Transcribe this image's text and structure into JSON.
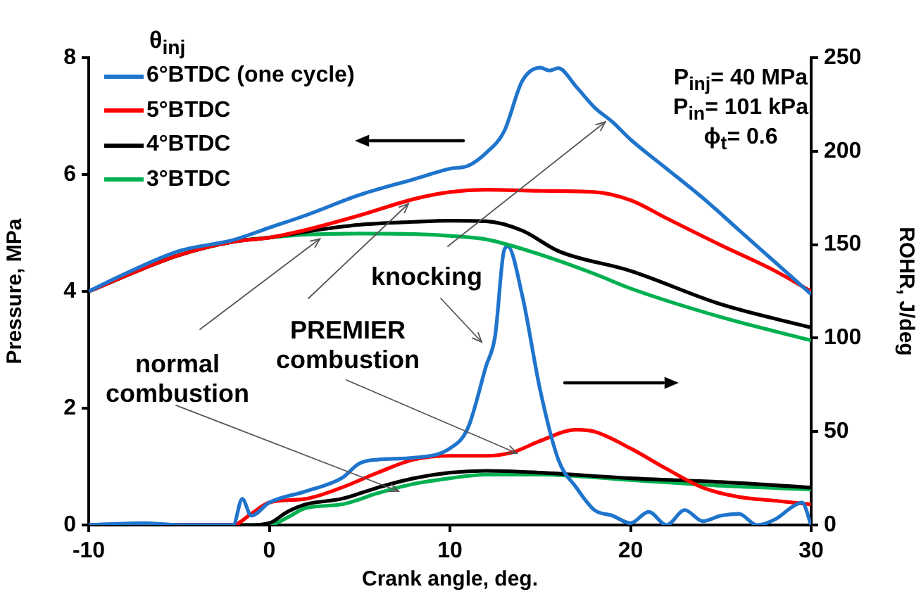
{
  "chart_data": {
    "type": "line",
    "xlabel": "Crank angle, deg.",
    "ylabel": "Pressure, MPa",
    "y2label": "ROHR, J/deg",
    "legend_title": "θ$_{inj}$",
    "legend": "top left",
    "grid": false,
    "marker": "none",
    "line_style": "solid",
    "xlim": [
      -10,
      30
    ],
    "xticks": [
      -10,
      0,
      10,
      20,
      30
    ],
    "ylim": [
      0,
      8
    ],
    "yticks": [
      0,
      2,
      4,
      6,
      8
    ],
    "y2lim": [
      0,
      250
    ],
    "y2ticks": [
      0,
      50,
      100,
      150,
      200,
      250
    ],
    "annotations": [
      {
        "text": "knocking",
        "x": 18.6,
        "y": 6.9
      },
      {
        "text": "PREMIER combustion",
        "x": 7.7,
        "y": 5.5
      },
      {
        "text": "normal combustion",
        "x": 2.8,
        "y": 4.9
      },
      "P$_{inj}$= 40 MPa",
      "P$_{in}$= 101 kPa",
      "ϕ$_{t}$= 0.6"
    ],
    "series": [
      {
        "name": "6°BTDC (one cycle)",
        "color": "#1f74cc",
        "x": [
          -10,
          -8,
          -5,
          -2,
          0,
          2,
          5,
          8,
          10,
          11,
          12,
          13,
          14,
          15,
          15.5,
          16,
          17,
          18,
          19,
          20,
          22,
          24,
          26,
          28,
          30
        ],
        "values": [
          4.0,
          4.3,
          4.69,
          4.88,
          5.09,
          5.3,
          5.65,
          5.92,
          6.1,
          6.15,
          6.37,
          6.74,
          7.6,
          7.83,
          7.78,
          7.82,
          7.5,
          7.15,
          6.9,
          6.6,
          6.1,
          5.6,
          5.05,
          4.5,
          3.95
        ]
      },
      {
        "name": "5°BTDC",
        "color": "#ff0000",
        "x": [
          -10,
          -5,
          -2,
          0,
          2,
          5,
          8,
          10,
          12,
          15,
          18,
          20,
          22,
          25,
          28,
          30
        ],
        "values": [
          4.0,
          4.62,
          4.85,
          4.92,
          5.05,
          5.3,
          5.58,
          5.7,
          5.74,
          5.72,
          5.7,
          5.56,
          5.25,
          4.79,
          4.35,
          4.0
        ]
      },
      {
        "name": "4°BTDC",
        "color": "#000000",
        "x": [
          -10,
          -5,
          -2,
          0,
          2,
          5,
          8,
          10,
          12,
          14,
          16,
          20,
          25,
          30
        ],
        "values": [
          4.0,
          4.62,
          4.85,
          4.92,
          5.02,
          5.14,
          5.19,
          5.21,
          5.2,
          5.04,
          4.69,
          4.35,
          3.78,
          3.38
        ]
      },
      {
        "name": "3°BTDC",
        "color": "#00b050",
        "x": [
          -10,
          -5,
          -2,
          0,
          2,
          5,
          8,
          10,
          12,
          15,
          18,
          20,
          25,
          30
        ],
        "values": [
          4.0,
          4.62,
          4.85,
          4.92,
          4.97,
          4.99,
          4.98,
          4.95,
          4.89,
          4.63,
          4.3,
          4.05,
          3.56,
          3.16
        ]
      },
      {
        "axis": "y2",
        "color": "#1f74cc",
        "x": [
          -10,
          -7,
          -5,
          -2,
          -1.5,
          -1,
          0,
          2,
          4,
          5,
          6,
          8,
          10,
          11,
          12,
          12.5,
          13,
          13.2,
          14,
          15,
          16,
          17,
          18,
          19,
          20,
          21,
          22,
          23,
          24,
          25,
          26,
          27,
          28,
          29,
          29.5,
          30
        ],
        "values": [
          0,
          1,
          0,
          0,
          14,
          5,
          12,
          18,
          25,
          33,
          35,
          36,
          41,
          52,
          85,
          101,
          147,
          149,
          123,
          72,
          35,
          20,
          8,
          5,
          1,
          7,
          0,
          8,
          2,
          5,
          6,
          0,
          3,
          10,
          12,
          0
        ]
      },
      {
        "axis": "y2",
        "color": "#ff0000",
        "x": [
          -10,
          -2,
          -1,
          0,
          2,
          4,
          6,
          8,
          10,
          12,
          13.5,
          15,
          17,
          18,
          20,
          22,
          24,
          26,
          28,
          30
        ],
        "values": [
          0,
          0,
          6,
          12,
          14,
          20,
          28,
          35,
          37,
          37,
          39,
          45,
          51,
          50,
          41,
          30,
          20,
          15,
          13,
          11
        ]
      },
      {
        "axis": "y2",
        "color": "#000000",
        "x": [
          -10,
          -1,
          0,
          1,
          2,
          4,
          6,
          8,
          10,
          12,
          15,
          20,
          25,
          30
        ],
        "values": [
          0,
          0,
          1,
          7,
          11,
          14,
          20,
          25,
          28,
          29,
          28,
          25,
          23,
          20
        ]
      },
      {
        "axis": "y2",
        "color": "#00b050",
        "x": [
          -10,
          0,
          1,
          2,
          4,
          6,
          8,
          10,
          12,
          15,
          20,
          25,
          30
        ],
        "values": [
          0,
          0,
          4,
          9,
          11,
          17,
          22,
          25,
          27,
          27,
          24,
          21,
          19
        ]
      }
    ]
  }
}
